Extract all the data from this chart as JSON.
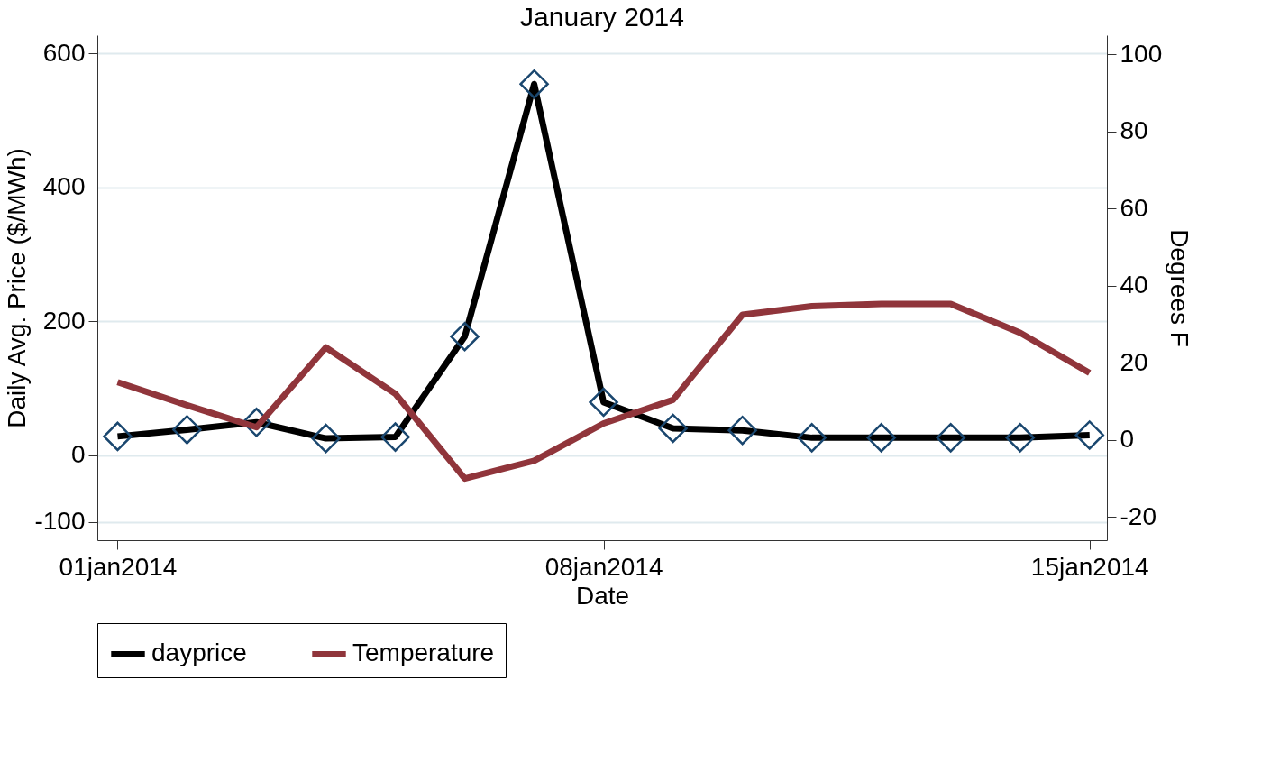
{
  "chart_data": {
    "type": "line",
    "title": "January 2014",
    "xlabel": "Date",
    "ylabel": "Daily Avg. Price ($/MWh)",
    "y2label": "Degrees F",
    "x": [
      "2014-01-01",
      "2014-01-02",
      "2014-01-03",
      "2014-01-04",
      "2014-01-05",
      "2014-01-06",
      "2014-01-07",
      "2014-01-08",
      "2014-01-09",
      "2014-01-10",
      "2014-01-11",
      "2014-01-12",
      "2014-01-13",
      "2014-01-14",
      "2014-01-15"
    ],
    "series": [
      {
        "name": "dayprice",
        "color": "#000000",
        "marker": "diamond",
        "values": [
          28,
          38,
          49,
          25,
          27,
          177,
          554,
          79,
          40,
          37,
          26,
          26,
          26,
          26,
          30
        ]
      },
      {
        "name": "Temperature",
        "color": "#90353b",
        "axis": "y2",
        "values": [
          15,
          9,
          3.3,
          24,
          12,
          -10,
          -5.4,
          4.3,
          10.4,
          32.5,
          34.7,
          35.3,
          35.3,
          27.8,
          17.4
        ]
      }
    ],
    "xlim": [
      "2013-12-31T17:00",
      "2014-01-15T06:00"
    ],
    "xticks": [
      {
        "value": "2014-01-01",
        "label": "01jan2014"
      },
      {
        "value": "2014-01-08",
        "label": "08jan2014"
      },
      {
        "value": "2014-01-15",
        "label": "15jan2014"
      }
    ],
    "ylim": [
      -127,
      627
    ],
    "yticks": [
      -100,
      0,
      200,
      400,
      600
    ],
    "y2lim": [
      -26,
      105
    ],
    "y2ticks": [
      -20,
      0,
      20,
      40,
      60,
      80,
      100
    ],
    "grid": "y",
    "legend": "bottom"
  }
}
